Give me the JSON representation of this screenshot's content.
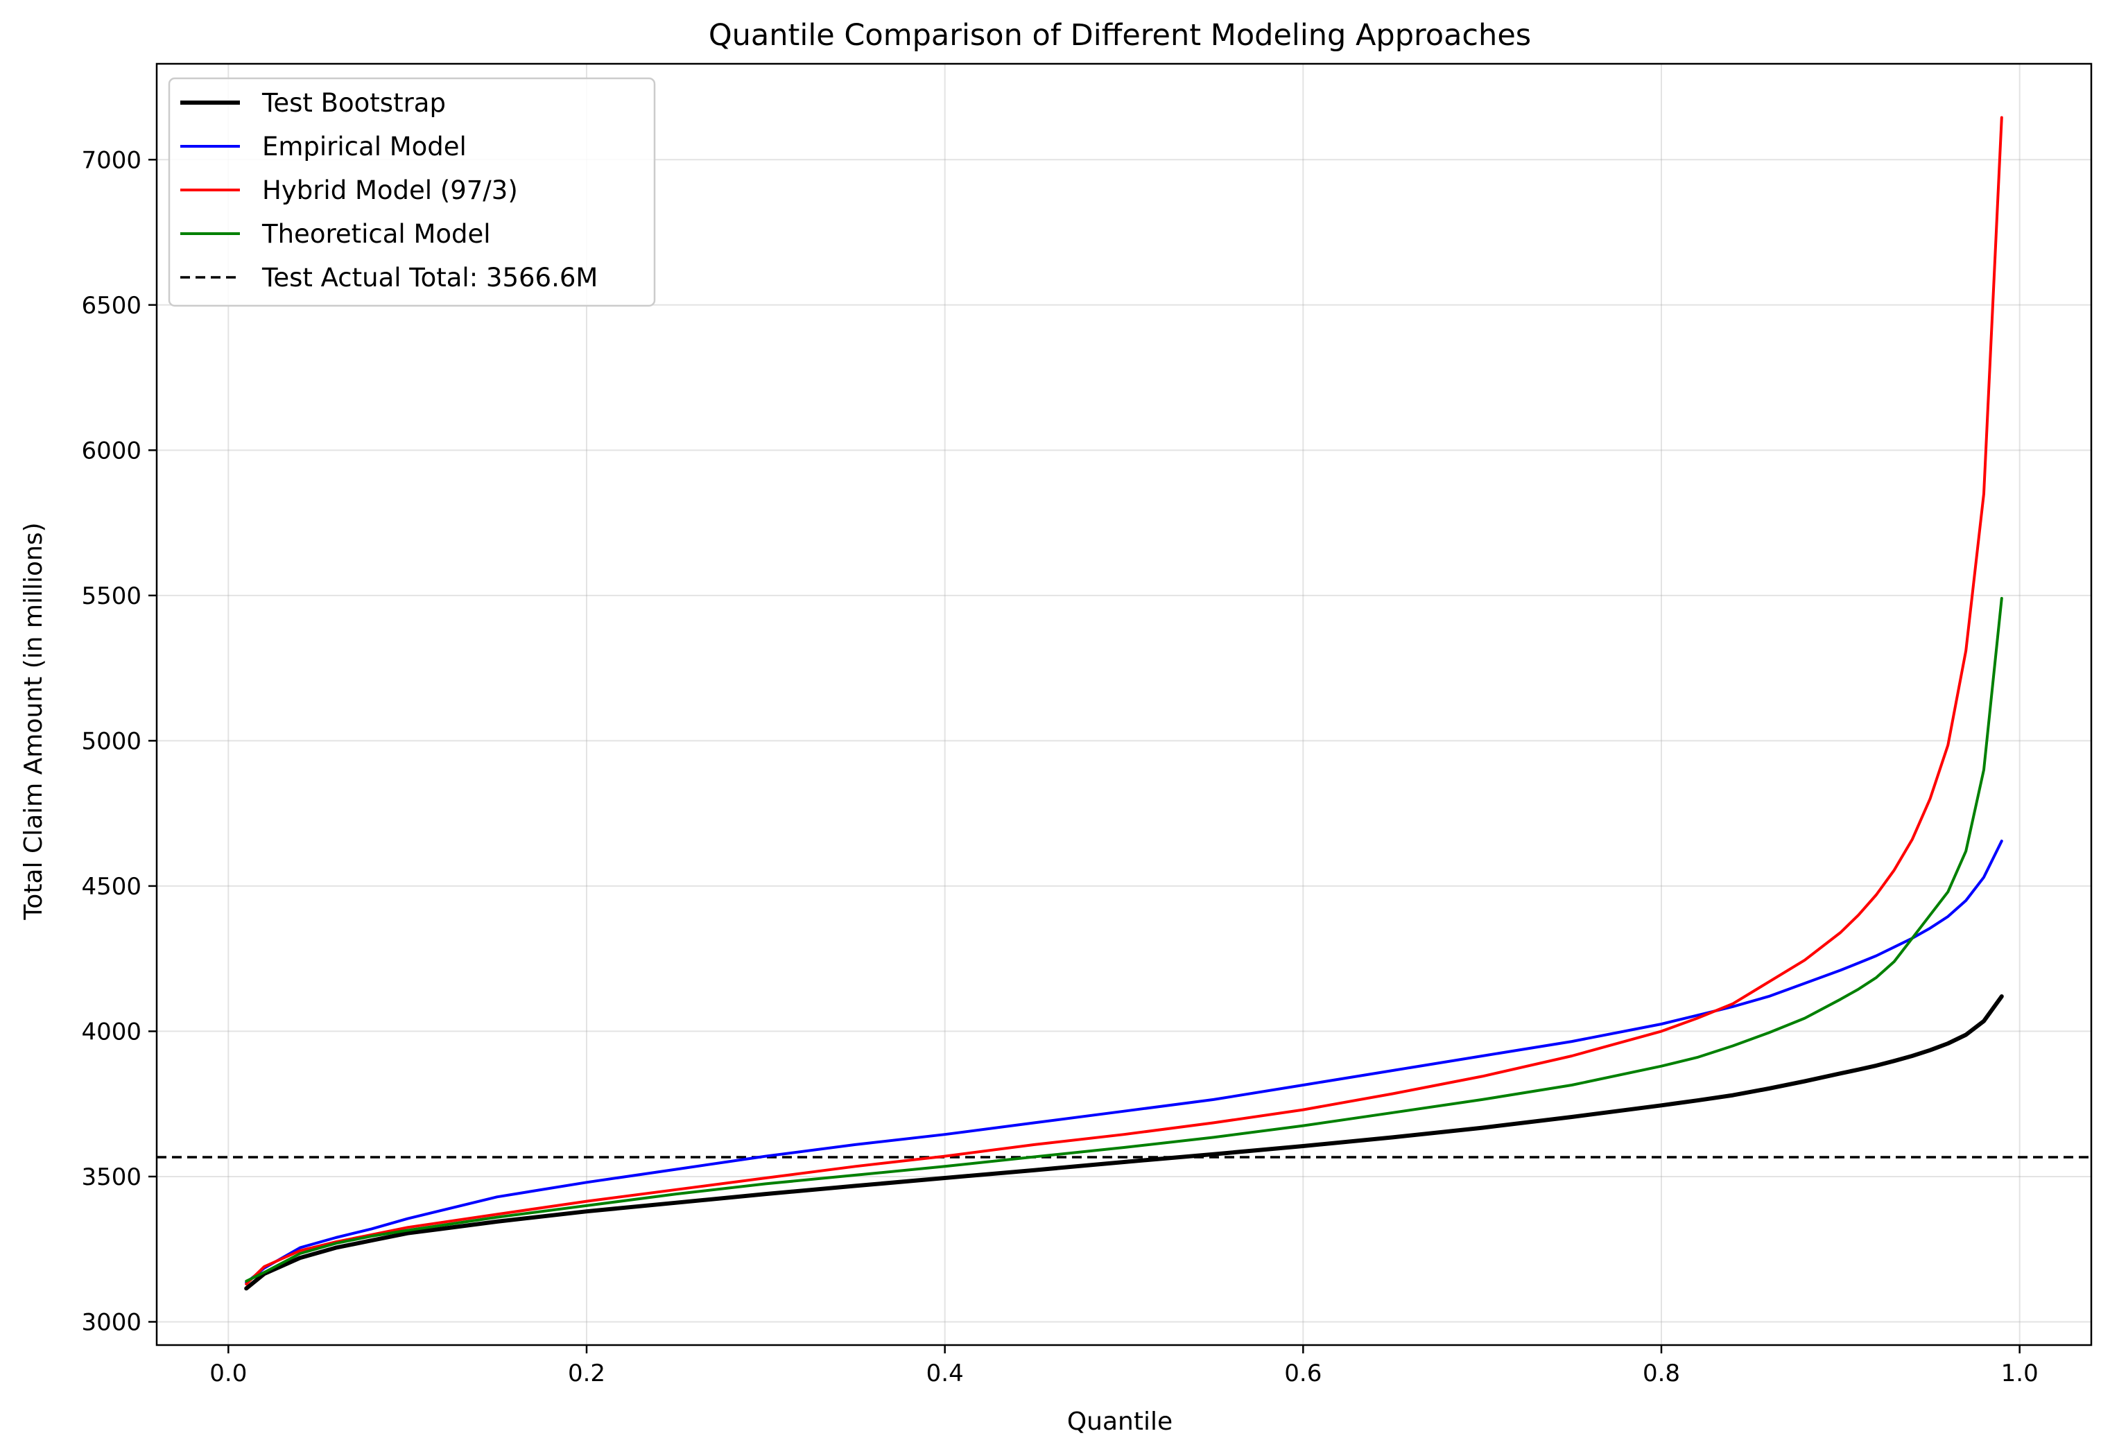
{
  "chart_data": {
    "type": "line",
    "title": "Quantile Comparison of Different Modeling Approaches",
    "xlabel": "Quantile",
    "ylabel": "Total Claim Amount (in millions)",
    "xlim": [
      -0.04,
      1.04
    ],
    "ylim": [
      2920,
      7330
    ],
    "xticks": [
      0.0,
      0.2,
      0.4,
      0.6,
      0.8,
      1.0
    ],
    "xtick_labels": [
      "0.0",
      "0.2",
      "0.4",
      "0.6",
      "0.8",
      "1.0"
    ],
    "yticks": [
      3000,
      3500,
      4000,
      4500,
      5000,
      5500,
      6000,
      6500,
      7000
    ],
    "ytick_labels": [
      "3000",
      "3500",
      "4000",
      "4500",
      "5000",
      "5500",
      "6000",
      "6500",
      "7000"
    ],
    "grid": true,
    "legend_position": "top-left",
    "x": [
      0.01,
      0.02,
      0.04,
      0.06,
      0.08,
      0.1,
      0.15,
      0.2,
      0.25,
      0.3,
      0.35,
      0.4,
      0.45,
      0.5,
      0.55,
      0.6,
      0.65,
      0.7,
      0.75,
      0.8,
      0.82,
      0.84,
      0.86,
      0.88,
      0.9,
      0.91,
      0.92,
      0.93,
      0.94,
      0.95,
      0.96,
      0.97,
      0.98,
      0.99
    ],
    "series": [
      {
        "name": "Test Bootstrap",
        "color": "#000000",
        "line_width": 6,
        "dashed": false,
        "values": [
          3115,
          3165,
          3220,
          3255,
          3280,
          3305,
          3345,
          3380,
          3410,
          3440,
          3468,
          3495,
          3522,
          3550,
          3577,
          3605,
          3635,
          3668,
          3705,
          3745,
          3762,
          3780,
          3803,
          3828,
          3855,
          3868,
          3882,
          3898,
          3915,
          3935,
          3958,
          3988,
          4035,
          4120
        ]
      },
      {
        "name": "Empirical Model",
        "color": "#0000ff",
        "line_width": 4,
        "dashed": false,
        "values": [
          3135,
          3185,
          3255,
          3290,
          3320,
          3355,
          3430,
          3480,
          3525,
          3570,
          3610,
          3645,
          3685,
          3725,
          3765,
          3815,
          3865,
          3915,
          3965,
          4025,
          4055,
          4085,
          4120,
          4165,
          4210,
          4235,
          4260,
          4290,
          4320,
          4355,
          4395,
          4450,
          4530,
          4655
        ]
      },
      {
        "name": "Hybrid Model (97/3)",
        "color": "#ff0000",
        "line_width": 4,
        "dashed": false,
        "values": [
          3130,
          3190,
          3245,
          3275,
          3300,
          3325,
          3370,
          3415,
          3455,
          3495,
          3535,
          3570,
          3610,
          3645,
          3685,
          3730,
          3785,
          3845,
          3915,
          4000,
          4045,
          4095,
          4170,
          4245,
          4340,
          4400,
          4470,
          4555,
          4660,
          4800,
          4985,
          5310,
          5850,
          7145
        ]
      },
      {
        "name": "Theoretical Model",
        "color": "#008000",
        "line_width": 4,
        "dashed": false,
        "values": [
          3140,
          3170,
          3235,
          3270,
          3295,
          3315,
          3360,
          3400,
          3440,
          3475,
          3505,
          3535,
          3568,
          3600,
          3635,
          3675,
          3720,
          3765,
          3815,
          3880,
          3910,
          3950,
          3995,
          4045,
          4110,
          4145,
          4185,
          4240,
          4320,
          4400,
          4480,
          4620,
          4900,
          5490
        ]
      }
    ],
    "reference_line": {
      "name": "Test Actual Total: 3566.6M",
      "y": 3566.6,
      "color": "#000000",
      "dashed": true
    }
  }
}
